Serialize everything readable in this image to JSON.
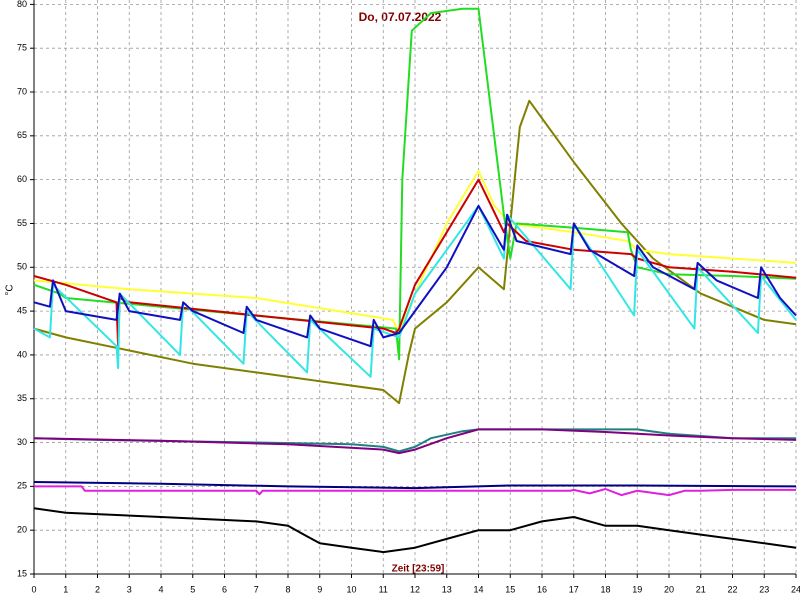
{
  "chart_data": {
    "type": "line",
    "title": "Do, 07.07.2022",
    "xlabel": "Zeit [23:59]",
    "ylabel": "°C",
    "xlim": [
      0,
      24
    ],
    "ylim": [
      15,
      80.5
    ],
    "xticks": [
      0,
      1,
      2,
      3,
      4,
      5,
      6,
      7,
      8,
      9,
      10,
      11,
      12,
      13,
      14,
      15,
      16,
      17,
      18,
      19,
      20,
      21,
      22,
      23,
      24
    ],
    "yticks": [
      15,
      20,
      25,
      30,
      35,
      40,
      45,
      50,
      55,
      60,
      65,
      70,
      75,
      80
    ],
    "grid": true,
    "series": [
      {
        "color": "#808000",
        "x": [
          0,
          1,
          3,
          5,
          7,
          9,
          11,
          11.5,
          11.8,
          12,
          13,
          14,
          14.8,
          15,
          15.3,
          15.6,
          17,
          18.5,
          19.5,
          21,
          23,
          24
        ],
        "values": [
          43,
          42,
          40.5,
          39,
          38,
          37,
          36,
          34.5,
          40,
          43,
          46,
          50,
          47.5,
          55,
          66,
          69,
          62,
          55,
          51,
          47,
          44,
          43.5
        ]
      },
      {
        "color": "#ffff33",
        "x": [
          0,
          3,
          7,
          11.3,
          11.5,
          12,
          13,
          14,
          14.5,
          15,
          17,
          18.7,
          19,
          20,
          22,
          24
        ],
        "values": [
          48.5,
          47.5,
          46.5,
          44,
          42.5,
          47,
          55,
          61,
          57,
          55,
          54,
          53,
          52,
          51.5,
          51,
          50.5
        ]
      },
      {
        "color": "#22dd22",
        "x": [
          0,
          0.8,
          1,
          11.4,
          11.5,
          11.6,
          11.9,
          12.5,
          13.5,
          14,
          14.8,
          15,
          15.2,
          17,
          18.7,
          18.8,
          19,
          20,
          22,
          24
        ],
        "values": [
          48,
          47,
          46.5,
          43,
          39.5,
          60,
          77,
          79,
          79.5,
          79.5,
          56,
          51,
          55,
          54.5,
          54,
          52,
          50,
          49.2,
          49,
          48.7
        ]
      },
      {
        "color": "#cc0000",
        "x": [
          0,
          1,
          2.6,
          2.65,
          2.7,
          3,
          11,
          11.4,
          11.5,
          12,
          13,
          14,
          14.8,
          14.9,
          15.5,
          17,
          18.8,
          19,
          20,
          22,
          24
        ],
        "values": [
          49,
          48,
          46,
          41,
          46.5,
          46,
          43,
          42.5,
          43,
          48,
          54,
          60,
          54,
          55,
          53,
          52,
          51.5,
          51,
          50,
          49.5,
          48.8
        ]
      },
      {
        "color": "#33e6e6",
        "x": [
          0,
          0.5,
          0.6,
          2.6,
          2.65,
          2.7,
          4.6,
          4.7,
          6.6,
          6.7,
          8.6,
          8.7,
          10.6,
          10.7,
          11.5,
          12,
          13,
          14,
          14.8,
          14.9,
          16.9,
          17,
          18.9,
          19,
          20.8,
          20.9,
          22.8,
          22.9,
          24
        ],
        "values": [
          43,
          42,
          48,
          41,
          38.5,
          47,
          40,
          46,
          39,
          45,
          38,
          44,
          37.5,
          43,
          42,
          47,
          52,
          57,
          51,
          56,
          47.5,
          55,
          44.5,
          52,
          43,
          50,
          42.5,
          49,
          44
        ]
      },
      {
        "color": "#1010c0",
        "x": [
          0,
          0.5,
          0.6,
          1,
          2.6,
          2.7,
          3,
          4.6,
          4.7,
          5,
          6.6,
          6.7,
          7,
          8.6,
          8.7,
          9,
          10.6,
          10.7,
          11,
          11.5,
          12,
          13,
          14,
          14.8,
          14.9,
          15.2,
          16.9,
          17,
          17.5,
          18.9,
          19,
          19.5,
          20.8,
          20.9,
          21.5,
          22.8,
          22.9,
          23.5,
          24
        ],
        "values": [
          46,
          45.5,
          48.5,
          45,
          44,
          47,
          45,
          44,
          46,
          45,
          42.5,
          45.5,
          44,
          42,
          44.5,
          43,
          41,
          44,
          42,
          42.5,
          45,
          50,
          57,
          52,
          56,
          53,
          51.5,
          55,
          52,
          49,
          52.5,
          50,
          47.5,
          50.5,
          48.5,
          46.5,
          50,
          46.5,
          44.5
        ]
      },
      {
        "color": "#208080",
        "x": [
          0,
          2,
          7,
          10,
          11,
          11.5,
          12,
          12.5,
          13.5,
          14,
          16,
          19,
          20,
          22,
          24
        ],
        "values": [
          30.5,
          30.3,
          30,
          29.8,
          29.5,
          29,
          29.5,
          30.5,
          31.3,
          31.5,
          31.5,
          31.5,
          31,
          30.5,
          30.5
        ]
      },
      {
        "color": "#800080",
        "x": [
          0,
          4,
          8,
          11,
          11.5,
          12,
          13,
          14,
          16,
          18,
          20,
          22,
          24
        ],
        "values": [
          30.5,
          30.2,
          29.8,
          29.2,
          28.8,
          29.2,
          30.5,
          31.5,
          31.5,
          31.2,
          30.8,
          30.5,
          30.3
        ]
      },
      {
        "color": "#000080",
        "x": [
          0,
          4,
          8,
          12,
          15,
          19,
          24
        ],
        "values": [
          25.5,
          25.3,
          25,
          24.8,
          25.1,
          25.1,
          25
        ]
      },
      {
        "color": "#e020e0",
        "x": [
          0,
          1.5,
          1.6,
          7,
          7.1,
          7.2,
          16.9,
          17,
          17.5,
          18,
          18.5,
          19,
          20,
          20.5,
          21,
          22,
          24
        ],
        "values": [
          25,
          25,
          24.5,
          24.5,
          24.1,
          24.5,
          24.5,
          24.6,
          24.2,
          24.7,
          24,
          24.5,
          24,
          24.5,
          24.5,
          24.6,
          24.6
        ]
      },
      {
        "color": "#000000",
        "x": [
          0,
          1,
          4,
          7,
          8,
          8.5,
          9,
          10,
          11,
          12,
          13,
          14,
          15,
          16,
          17,
          18,
          19,
          20,
          21,
          22,
          23,
          24
        ],
        "values": [
          22.5,
          22,
          21.5,
          21,
          20.5,
          19.5,
          18.5,
          18,
          17.5,
          18,
          19,
          20,
          20,
          21,
          21.5,
          20.5,
          20.5,
          20,
          19.5,
          19,
          18.5,
          18
        ]
      }
    ]
  }
}
